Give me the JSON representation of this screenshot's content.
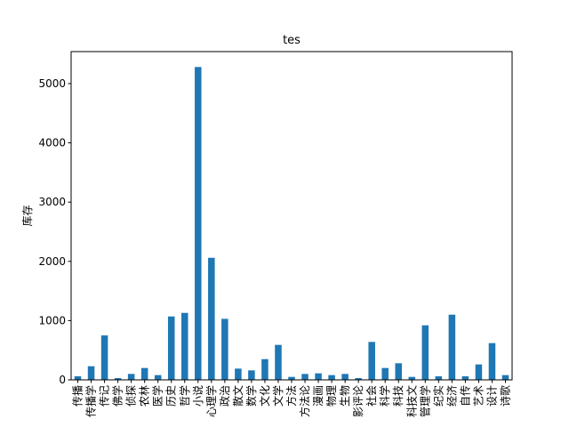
{
  "chart_data": {
    "type": "bar",
    "title": "tes",
    "xlabel": "",
    "ylabel": "库存",
    "ylim": [
      0,
      5540
    ],
    "yticks": [
      0,
      1000,
      2000,
      3000,
      4000,
      5000
    ],
    "grid": false,
    "legend": "none",
    "bar_color": "#1f77b4",
    "categories": [
      "传播",
      "传播学",
      "传记",
      "佛学",
      "侦探",
      "农林",
      "医学",
      "历史",
      "哲学",
      "小说",
      "心理学",
      "政治",
      "散文",
      "数学",
      "文化",
      "文学",
      "方法",
      "方法论",
      "漫画",
      "物理",
      "生物",
      "影评论",
      "社会",
      "科学",
      "科技",
      "科技文",
      "管理学",
      "纪实",
      "经济",
      "自传",
      "艺术",
      "设计",
      "诗歌"
    ],
    "values": [
      60,
      230,
      750,
      30,
      100,
      200,
      80,
      1070,
      1130,
      5280,
      2060,
      1030,
      190,
      160,
      350,
      590,
      50,
      100,
      110,
      80,
      100,
      30,
      640,
      200,
      280,
      50,
      920,
      60,
      1100,
      60,
      260,
      620,
      80
    ]
  }
}
